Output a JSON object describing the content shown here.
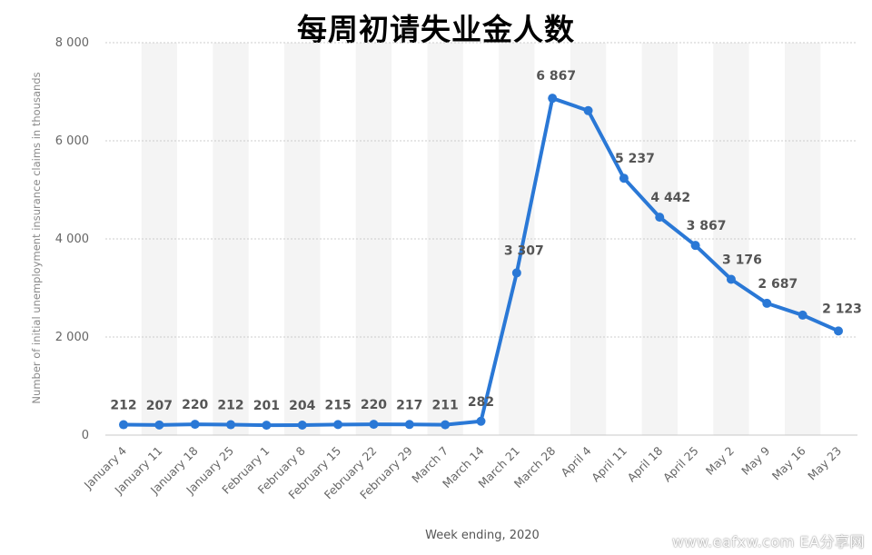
{
  "chart_data": {
    "type": "line",
    "title": "每周初请失业金人数",
    "xlabel": "Week ending, 2020",
    "ylabel": "Number of initial unemployment insurance claims in thousands",
    "ylim": [
      0,
      8000
    ],
    "yticks": [
      0,
      2000,
      4000,
      6000,
      8000
    ],
    "ytick_labels": [
      "0",
      "2 000",
      "4 000",
      "6 000",
      "8 000"
    ],
    "grid": true,
    "categories": [
      "January 4",
      "January 11",
      "January 18",
      "January 25",
      "February 1",
      "February 8",
      "February 15",
      "February 22",
      "February 29",
      "March 7",
      "March 14",
      "March 21",
      "March 28",
      "April 4",
      "April 11",
      "April 18",
      "April 25",
      "May 2",
      "May 9",
      "May 16",
      "May 23"
    ],
    "series": [
      {
        "values": [
          212,
          207,
          220,
          212,
          201,
          204,
          215,
          220,
          217,
          211,
          282,
          3307,
          6867,
          6615,
          5237,
          4442,
          3867,
          3176,
          2687,
          2446,
          2123
        ],
        "labels": [
          "212",
          "207",
          "220",
          "212",
          "201",
          "204",
          "215",
          "220",
          "217",
          "211",
          "282",
          "3 307",
          "6 867",
          "",
          "5 237",
          "4 442",
          "3 867",
          "3 176",
          "2 687",
          "",
          "2 123"
        ]
      }
    ],
    "colors": {
      "line": "#2a78d6",
      "band": "#f4f4f4",
      "grid": "#cccccc",
      "label": "#555555"
    }
  },
  "watermark": "www.eafxw.com  EA分享网"
}
